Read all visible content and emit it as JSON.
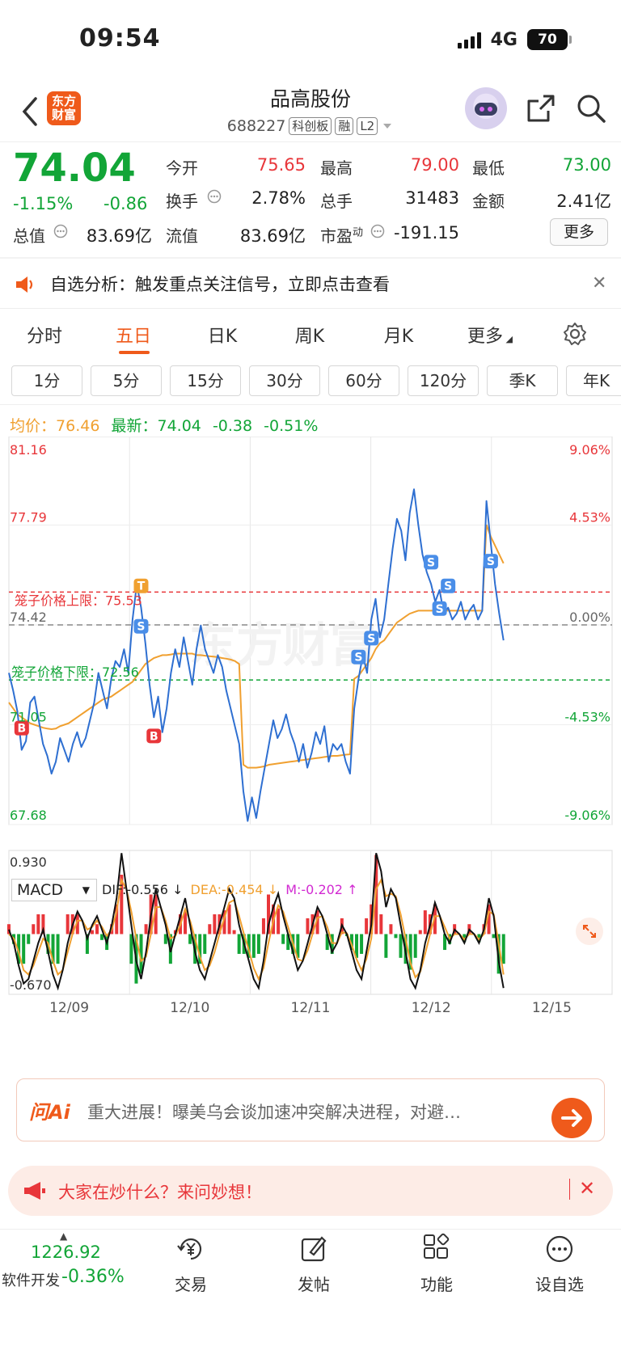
{
  "status_bar": {
    "time": "09:54",
    "network": "4G",
    "battery": "70"
  },
  "header": {
    "logo_text": "东方\n财富",
    "title": "品高股份",
    "code": "688227",
    "tags": [
      "科创板",
      "融",
      "L2"
    ]
  },
  "quote": {
    "price": "74.04",
    "change_pct": "-1.15%",
    "change_amt": "-0.86",
    "fields": [
      {
        "label": "今开",
        "value": "75.65",
        "color": "#e8363a"
      },
      {
        "label": "最高",
        "value": "79.00",
        "color": "#e8363a"
      },
      {
        "label": "最低",
        "value": "73.00",
        "color": "#12a537"
      },
      {
        "label": "换手",
        "value": "2.78%",
        "color": "#222222"
      },
      {
        "label": "总手",
        "value": "31483",
        "color": "#222222"
      },
      {
        "label": "金额",
        "value": "2.41亿",
        "color": "#222222"
      },
      {
        "label": "总值",
        "value": "83.69亿",
        "color": "#222222"
      },
      {
        "label": "流值",
        "value": "83.69亿",
        "color": "#222222"
      },
      {
        "label": "市盈",
        "value": "-191.15",
        "color": "#222222"
      }
    ],
    "pe_superscript": "动",
    "more_label": "更多"
  },
  "alert": {
    "text": "自选分析：触发重点关注信号，立即点击查看"
  },
  "tabs": {
    "items": [
      "分时",
      "五日",
      "日K",
      "周K",
      "月K",
      "更多"
    ],
    "active": "五日"
  },
  "sub_tabs": [
    "1分",
    "5分",
    "15分",
    "30分",
    "60分",
    "120分",
    "季K",
    "年K"
  ],
  "chart_header": {
    "avg_label": "均价：",
    "avg_value": "76.46",
    "latest_label": "最新：",
    "latest_value": "74.04",
    "latest_change": "-0.38",
    "latest_pct": "-0.51%"
  },
  "chart_data": {
    "type": "line",
    "title": "",
    "y_left_ticks": [
      "81.16",
      "77.79",
      "74.42",
      "71.05",
      "67.68"
    ],
    "y_right_ticks": [
      "9.06%",
      "4.53%",
      "0.00%",
      "-4.53%",
      "-9.06%"
    ],
    "ylim": [
      67.68,
      81.16
    ],
    "prev_close": 74.42,
    "upper_limit_label": "笼子价格上限：75.53",
    "upper_limit": 75.53,
    "lower_limit_label": "笼子价格下限：72.56",
    "lower_limit": 72.56,
    "x_labels": [
      "12/09",
      "12/10",
      "12/11",
      "12/12",
      "12/15"
    ],
    "watermark": "东方财富",
    "series": [],
    "price": [
      72.8,
      72.2,
      71.5,
      70.2,
      70.5,
      71.8,
      72.0,
      71.2,
      70.4,
      70.0,
      69.4,
      69.8,
      70.6,
      70.2,
      69.8,
      70.4,
      70.8,
      70.3,
      70.6,
      71.2,
      71.8,
      72.8,
      72.2,
      71.6,
      72.6,
      73.2,
      73.0,
      73.6,
      72.8,
      74.6,
      75.8,
      75.0,
      73.8,
      72.4,
      71.3,
      72.0,
      70.8,
      71.6,
      72.8,
      73.6,
      73.0,
      74.0,
      73.2,
      72.4,
      73.6,
      74.4,
      73.6,
      73.2,
      72.8,
      73.4,
      73.0,
      72.2,
      71.6,
      71.0,
      70.4,
      68.8,
      67.8,
      68.6,
      67.9,
      68.8,
      69.6,
      70.4,
      71.2,
      70.6,
      70.9,
      71.4,
      70.8,
      70.4,
      69.8,
      70.4,
      69.6,
      70.1,
      70.8,
      70.4,
      71.0,
      69.8,
      70.4,
      70.2,
      70.4,
      69.8,
      69.4,
      71.6,
      72.6,
      73.4,
      72.8,
      74.6,
      75.3,
      74.0,
      74.6,
      75.8,
      77.0,
      78.0,
      77.6,
      76.6,
      78.2,
      79.0,
      77.8,
      76.8,
      76.2,
      75.8,
      75.2,
      75.6,
      74.8,
      75.0,
      74.6,
      74.8,
      75.2,
      74.6,
      74.9,
      75.1,
      74.6,
      74.9,
      78.6,
      77.2,
      75.8,
      74.8,
      73.9
    ],
    "avg": [
      71.8,
      71.6,
      71.4,
      71.3,
      71.2,
      71.1,
      71.05,
      71.0,
      70.95,
      70.92,
      70.9,
      70.92,
      71.0,
      71.05,
      71.1,
      71.2,
      71.3,
      71.4,
      71.5,
      71.6,
      71.7,
      71.8,
      71.9,
      71.95,
      72.0,
      72.1,
      72.2,
      72.3,
      72.4,
      72.5,
      72.7,
      72.9,
      73.1,
      73.2,
      73.3,
      73.35,
      73.4,
      73.4,
      73.42,
      73.45,
      73.45,
      73.45,
      73.45,
      73.45,
      73.4,
      73.4,
      73.38,
      73.36,
      73.35,
      73.33,
      73.3,
      73.28,
      73.25,
      73.2,
      73.1,
      69.7,
      69.6,
      69.6,
      69.6,
      69.62,
      69.65,
      69.7,
      69.72,
      69.74,
      69.76,
      69.78,
      69.8,
      69.82,
      69.84,
      69.86,
      69.88,
      69.9,
      69.92,
      69.94,
      69.96,
      69.98,
      70.0,
      70.0,
      70.02,
      70.04,
      70.05,
      72.6,
      72.7,
      72.9,
      73.1,
      73.3,
      73.6,
      73.8,
      73.9,
      74.1,
      74.3,
      74.5,
      74.6,
      74.7,
      74.8,
      74.85,
      74.9,
      74.9,
      74.9,
      74.9,
      74.9,
      74.9,
      74.9,
      74.9,
      74.9,
      74.9,
      74.9,
      74.9,
      74.9,
      74.9,
      74.9,
      74.9,
      77.8,
      77.4,
      77.1,
      76.8,
      76.5
    ],
    "macd": {
      "label": "MACD",
      "dif_text": "DIF:-0.556",
      "dea_text": "DEA:-0.454",
      "m_text": "M:-0.202",
      "y_top": "0.930",
      "y_bottom": "-0.670",
      "ylim": [
        -0.67,
        0.93
      ],
      "dif": [
        0.05,
        -0.1,
        -0.35,
        -0.55,
        -0.5,
        -0.3,
        -0.1,
        0.05,
        -0.2,
        -0.45,
        -0.6,
        -0.4,
        -0.1,
        0.1,
        0.25,
        0.15,
        -0.05,
        0.1,
        0.2,
        0.05,
        -0.1,
        0.1,
        0.4,
        0.9,
        0.5,
        0.1,
        -0.3,
        -0.5,
        -0.2,
        0.2,
        0.5,
        0.3,
        0.1,
        -0.2,
        0.0,
        0.2,
        0.4,
        0.1,
        -0.2,
        -0.4,
        -0.5,
        -0.3,
        -0.1,
        0.1,
        0.3,
        0.5,
        0.4,
        0.1,
        -0.1,
        -0.3,
        -0.5,
        -0.6,
        -0.3,
        0.1,
        0.3,
        0.45,
        0.2,
        0.0,
        -0.2,
        -0.4,
        -0.3,
        -0.1,
        0.1,
        0.3,
        0.2,
        0.0,
        -0.2,
        -0.1,
        0.1,
        0.0,
        -0.2,
        -0.4,
        -0.5,
        -0.2,
        0.1,
        0.9,
        0.7,
        0.3,
        0.5,
        0.4,
        0.1,
        -0.2,
        -0.5,
        -0.6,
        -0.4,
        -0.1,
        0.1,
        0.35,
        0.2,
        0.0,
        -0.1,
        0.05,
        0.0,
        -0.1,
        0.05,
        0.0,
        -0.1,
        0.05,
        0.4,
        0.2,
        -0.3,
        -0.6
      ],
      "dea": [
        0.0,
        -0.05,
        -0.2,
        -0.4,
        -0.45,
        -0.35,
        -0.2,
        -0.05,
        -0.1,
        -0.3,
        -0.45,
        -0.4,
        -0.2,
        0.0,
        0.15,
        0.15,
        0.05,
        0.08,
        0.15,
        0.08,
        -0.02,
        0.05,
        0.25,
        0.6,
        0.5,
        0.25,
        -0.05,
        -0.3,
        -0.25,
        0.0,
        0.3,
        0.3,
        0.15,
        -0.05,
        -0.02,
        0.1,
        0.28,
        0.15,
        -0.05,
        -0.25,
        -0.4,
        -0.35,
        -0.2,
        0.0,
        0.18,
        0.35,
        0.38,
        0.2,
        0.0,
        -0.18,
        -0.38,
        -0.5,
        -0.38,
        -0.1,
        0.15,
        0.32,
        0.25,
        0.08,
        -0.1,
        -0.28,
        -0.3,
        -0.18,
        0.0,
        0.18,
        0.2,
        0.08,
        -0.1,
        -0.1,
        0.02,
        0.01,
        -0.12,
        -0.28,
        -0.4,
        -0.28,
        -0.05,
        0.5,
        0.6,
        0.42,
        0.45,
        0.42,
        0.22,
        -0.05,
        -0.32,
        -0.48,
        -0.42,
        -0.22,
        0.0,
        0.2,
        0.2,
        0.08,
        -0.05,
        0.0,
        0.0,
        -0.06,
        0.0,
        0.0,
        -0.06,
        0.0,
        0.25,
        0.22,
        -0.1,
        -0.45
      ],
      "colors": {
        "dif": "#111111",
        "dea": "#f0a030",
        "pos": "#e8363a",
        "neg": "#12a537"
      }
    },
    "colors": {
      "price": "#2e6fd1",
      "avg": "#f0a030",
      "upper": "#e8363a",
      "lower": "#12a537",
      "base": "#888888"
    }
  },
  "ai_bar": {
    "logo": "问Ai",
    "text": "重大进展！曝美乌会谈加速冲突解决进程，对避…"
  },
  "promo": {
    "text": "大家在炒什么？来问妙想！"
  },
  "bottom_nav": {
    "index_value": "1226.92",
    "index_name": "软件开发",
    "index_change": "-0.36%",
    "items": [
      "交易",
      "发帖",
      "功能",
      "设自选"
    ]
  }
}
